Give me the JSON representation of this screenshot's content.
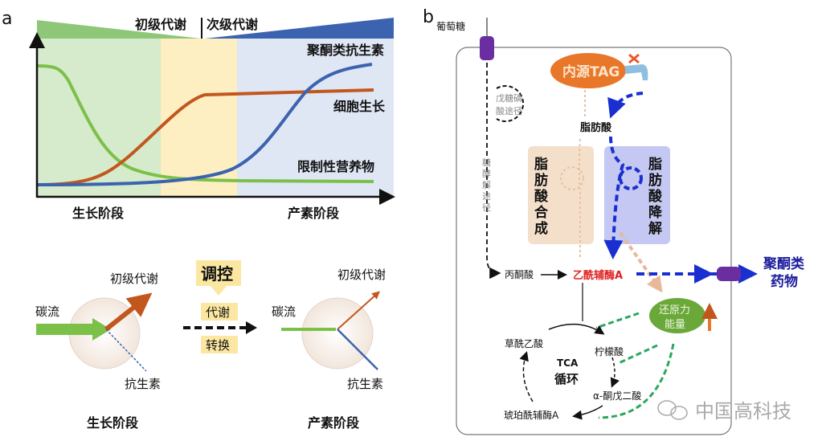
{
  "panel_a": {
    "label": "a",
    "top_labels": {
      "primary": "初级代谢",
      "secondary": "次级代谢"
    },
    "curve_labels": {
      "polyketide": "聚酮类抗生素",
      "cell_growth": "细胞生长",
      "limiting_nutrient": "限制性营养物"
    },
    "phase_labels": {
      "growth": "生长阶段",
      "production": "产素阶段"
    },
    "colors": {
      "polyketide": "#3b63b0",
      "cell_growth": "#c2571e",
      "limiting_nutrient": "#7cc04a"
    },
    "lower": {
      "left": {
        "carbon_flux": "碳流",
        "primary": "初级代谢",
        "antibiotic": "抗生素",
        "phase": "生长阶段"
      },
      "middle": {
        "regulation": "调控",
        "metabolic": "代谢",
        "switch": "转换"
      },
      "right": {
        "carbon_flux": "碳流",
        "primary": "初级代谢",
        "antibiotic": "抗生素",
        "phase": "产素阶段"
      }
    }
  },
  "panel_b": {
    "label": "b",
    "glucose": "葡萄糖",
    "pentose_pathway": [
      "戊糖磷",
      "酸途径"
    ],
    "glycolysis": [
      "糖",
      "酵",
      "解",
      "途",
      "径"
    ],
    "endogenous_tag": "内源TAG",
    "fatty_acid": "脂肪酸",
    "fa_synthesis": [
      "脂",
      "肪",
      "酸",
      "合",
      "成"
    ],
    "fa_degradation": [
      "脂",
      "肪",
      "酸",
      "降",
      "解"
    ],
    "pyruvate": "丙酮酸",
    "acetyl_coa": "乙酰辅酶A",
    "polyketide_drug": [
      "聚酮类",
      "药物"
    ],
    "reducing_power": [
      "还原力",
      "能量"
    ],
    "tca": [
      "TCA",
      "循环"
    ],
    "oxaloacetate": "草酰乙酸",
    "citrate": "柠檬酸",
    "alpha_kg": "α-酮戊二酸",
    "succinyl_coa": "琥珀酰辅酶A",
    "colors": {
      "acetyl_coa": "#e02020",
      "drug": "#1a1a9a",
      "tag": "#e8772a",
      "reducing": "#6aa83a"
    }
  },
  "watermark": "中国高科技"
}
